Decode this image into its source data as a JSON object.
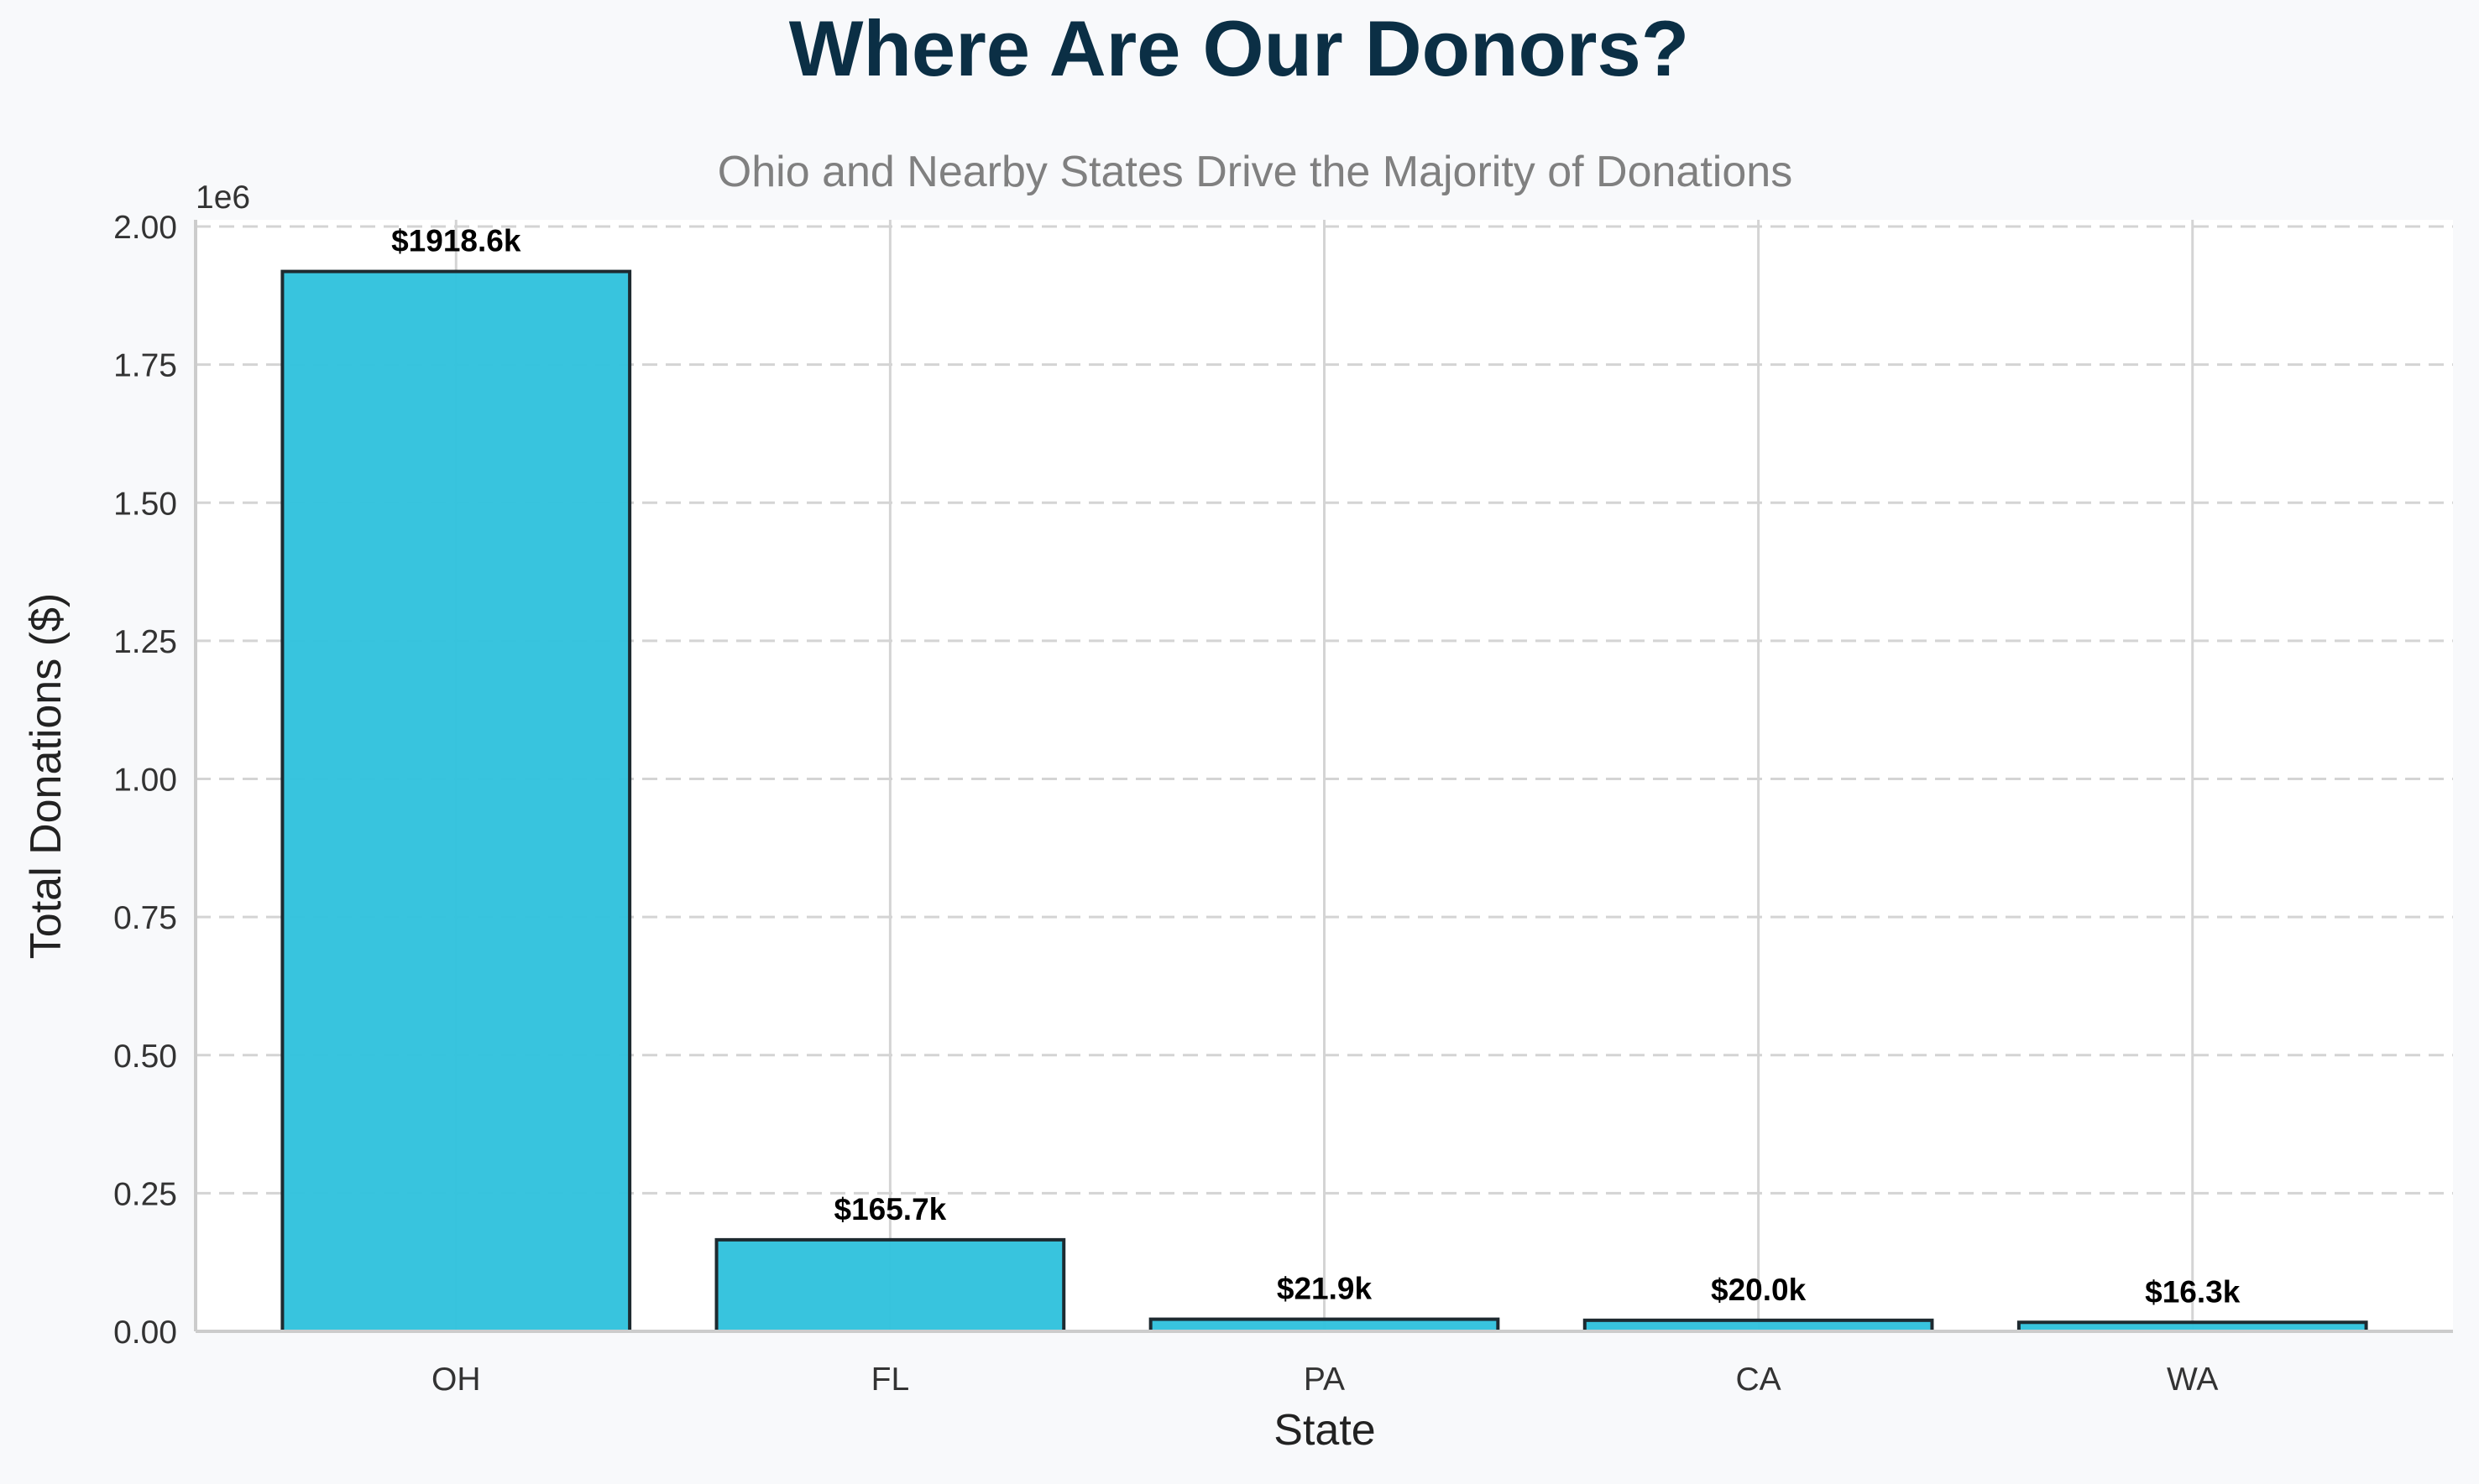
{
  "chart_data": {
    "type": "bar",
    "title": "Where Are Our Donors?",
    "subtitle": "Ohio and Nearby States Drive the Majority of Donations",
    "xlabel": "State",
    "ylabel": "Total Donations ($)",
    "categories": [
      "OH",
      "FL",
      "PA",
      "CA",
      "WA"
    ],
    "values": [
      1918600,
      165700,
      21900,
      20000,
      16300
    ],
    "data_labels": [
      "$1918.6k",
      "$165.7k",
      "$21.9k",
      "$20.0k",
      "$16.3k"
    ],
    "ylim": [
      0,
      2000000
    ],
    "yticks": [
      0,
      250000,
      500000,
      750000,
      1000000,
      1250000,
      1500000,
      1750000,
      2000000
    ],
    "ytick_labels": [
      "0.00",
      "0.25",
      "0.50",
      "0.75",
      "1.00",
      "1.25",
      "1.50",
      "1.75",
      "2.00"
    ],
    "y_offset_label": "1e6",
    "grid": true,
    "colors": {
      "bar_fill": "#34c3dd",
      "bar_edge": "#1e2a30",
      "title": "#0b2f45",
      "subtitle": "#808080",
      "axis_label": "#222222",
      "tick_label": "#333333",
      "data_label": "#000000",
      "grid": "#d4d4d4",
      "spine": "#cccccc",
      "plot_bg": "#ffffff",
      "page_bg": "#f8f9fb"
    }
  }
}
